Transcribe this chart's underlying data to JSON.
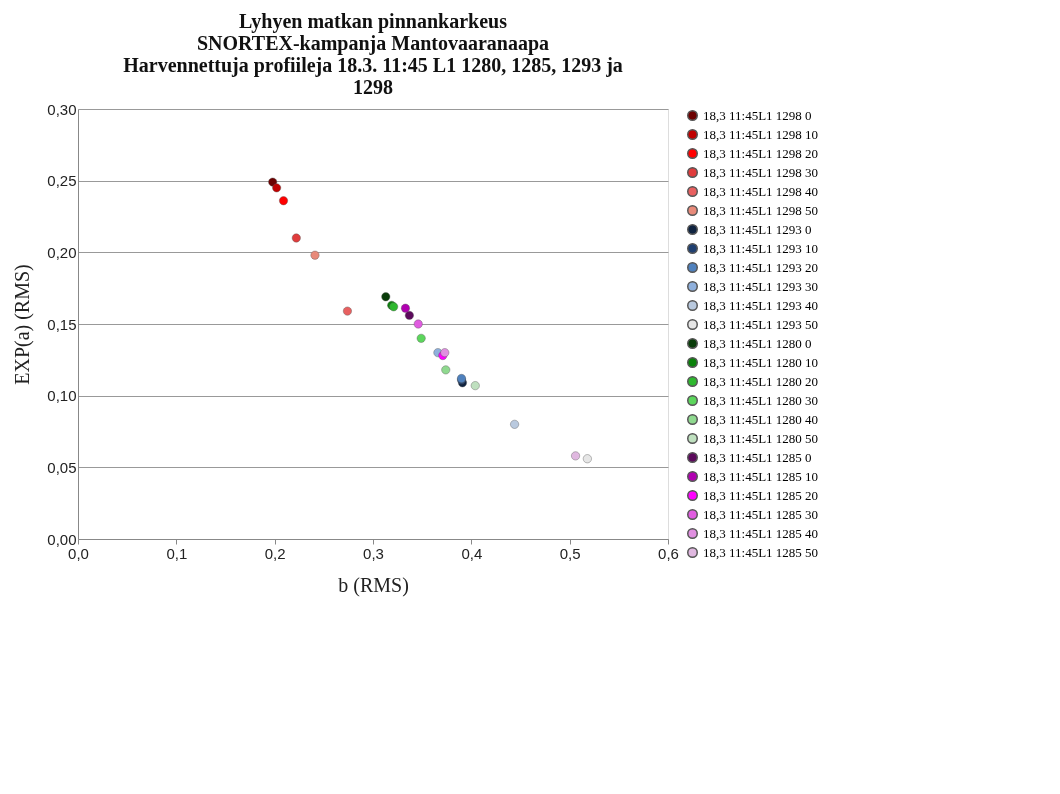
{
  "chart_data": {
    "type": "scatter",
    "title": "Lyhyen matkan pinnankarkeus\nSNORTEX-kampanja Mantovaaranaapa\nHarvennettuja profiileja 18.3. 11:45 L1 1280, 1285, 1293 ja\n1298",
    "xlabel": "b (RMS)",
    "ylabel": "EXP(a) (RMS)",
    "xlim": [
      0,
      0.6
    ],
    "ylim": [
      0,
      0.3
    ],
    "xticks": [
      {
        "value": 0,
        "label": "0,0"
      },
      {
        "value": 0.1,
        "label": "0,1"
      },
      {
        "value": 0.2,
        "label": "0,2"
      },
      {
        "value": 0.3,
        "label": "0,3"
      },
      {
        "value": 0.4,
        "label": "0,4"
      },
      {
        "value": 0.5,
        "label": "0,5"
      },
      {
        "value": 0.6,
        "label": "0,6"
      }
    ],
    "yticks": [
      {
        "value": 0,
        "label": "0,00"
      },
      {
        "value": 0.05,
        "label": "0,05"
      },
      {
        "value": 0.1,
        "label": "0,10"
      },
      {
        "value": 0.15,
        "label": "0,15"
      },
      {
        "value": 0.2,
        "label": "0,20"
      },
      {
        "value": 0.25,
        "label": "0,25"
      },
      {
        "value": 0.3,
        "label": "0,30"
      }
    ],
    "grid": "y",
    "legend": "right",
    "marker": "circle",
    "series": [
      {
        "name": "18,3 11:45L1 1298 0",
        "color": "#6b0000",
        "x": [
          0.198
        ],
        "values": [
          0.249
        ]
      },
      {
        "name": "18,3 11:45L1 1298 10",
        "color": "#c00000",
        "x": [
          0.202
        ],
        "values": [
          0.245
        ]
      },
      {
        "name": "18,3 11:45L1 1298 20",
        "color": "#ff0000",
        "x": [
          0.209
        ],
        "values": [
          0.236
        ]
      },
      {
        "name": "18,3 11:45L1 1298 30",
        "color": "#e03c3c",
        "x": [
          0.222
        ],
        "values": [
          0.21
        ]
      },
      {
        "name": "18,3 11:45L1 1298 40",
        "color": "#e86060",
        "x": [
          0.274
        ],
        "values": [
          0.159
        ]
      },
      {
        "name": "18,3 11:45L1 1298 50",
        "color": "#e88a7a",
        "x": [
          0.241
        ],
        "values": [
          0.198
        ]
      },
      {
        "name": "18,3 11:45L1 1293 0",
        "color": "#0f2340",
        "x": [
          0.391
        ],
        "values": [
          0.109
        ]
      },
      {
        "name": "18,3 11:45L1 1293 10",
        "color": "#1f3f70",
        "x": [
          0.39
        ],
        "values": [
          0.111
        ]
      },
      {
        "name": "18,3 11:45L1 1293 20",
        "color": "#4f81bd",
        "x": [
          0.39
        ],
        "values": [
          0.112
        ]
      },
      {
        "name": "18,3 11:45L1 1293 30",
        "color": "#8fb0dc",
        "x": [
          0.366
        ],
        "values": [
          0.13
        ]
      },
      {
        "name": "18,3 11:45L1 1293 40",
        "color": "#b9c9de",
        "x": [
          0.444
        ],
        "values": [
          0.08
        ]
      },
      {
        "name": "18,3 11:45L1 1293 50",
        "color": "#e6e6e6",
        "x": [
          0.518
        ],
        "values": [
          0.056
        ]
      },
      {
        "name": "18,3 11:45L1 1280 0",
        "color": "#0a3d0a",
        "x": [
          0.313
        ],
        "values": [
          0.169
        ]
      },
      {
        "name": "18,3 11:45L1 1280 10",
        "color": "#0a800a",
        "x": [
          0.319
        ],
        "values": [
          0.163
        ]
      },
      {
        "name": "18,3 11:45L1 1280 20",
        "color": "#2eb82e",
        "x": [
          0.321
        ],
        "values": [
          0.162
        ]
      },
      {
        "name": "18,3 11:45L1 1280 30",
        "color": "#5cd65c",
        "x": [
          0.349
        ],
        "values": [
          0.14
        ]
      },
      {
        "name": "18,3 11:45L1 1280 40",
        "color": "#8fd98f",
        "x": [
          0.374
        ],
        "values": [
          0.118
        ]
      },
      {
        "name": "18,3 11:45L1 1280 50",
        "color": "#bfe0bf",
        "x": [
          0.404
        ],
        "values": [
          0.107
        ]
      },
      {
        "name": "18,3 11:45L1 1285 0",
        "color": "#5c0a5c",
        "x": [
          0.337
        ],
        "values": [
          0.156
        ]
      },
      {
        "name": "18,3 11:45L1 1285 10",
        "color": "#b000b0",
        "x": [
          0.333
        ],
        "values": [
          0.161
        ]
      },
      {
        "name": "18,3 11:45L1 1285 20",
        "color": "#ff00ff",
        "x": [
          0.371
        ],
        "values": [
          0.128
        ]
      },
      {
        "name": "18,3 11:45L1 1285 30",
        "color": "#e05ce0",
        "x": [
          0.346
        ],
        "values": [
          0.15
        ]
      },
      {
        "name": "18,3 11:45L1 1285 40",
        "color": "#e08fe0",
        "x": [
          0.373
        ],
        "values": [
          0.13
        ]
      },
      {
        "name": "18,3 11:45L1 1285 50",
        "color": "#e0b8e0",
        "x": [
          0.506
        ],
        "values": [
          0.058
        ]
      }
    ]
  }
}
